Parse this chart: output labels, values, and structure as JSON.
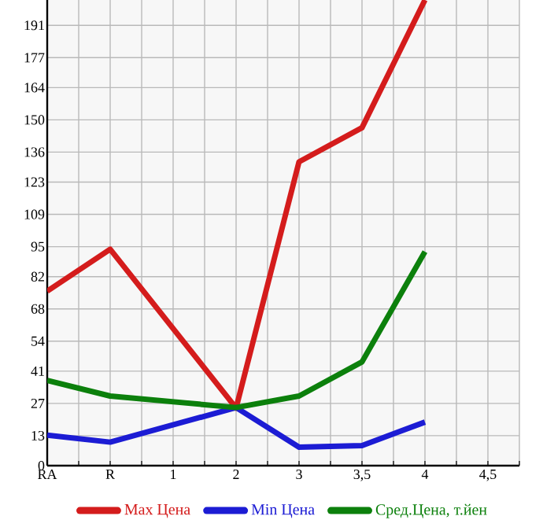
{
  "chart_data": {
    "type": "line",
    "categories": [
      "RA",
      "R",
      "1",
      "2",
      "3",
      "3,5",
      "4",
      "4,5"
    ],
    "series": [
      {
        "name": "Max Цена",
        "color": "#d41c1c",
        "values": [
          75.7,
          93.9,
          null,
          25,
          131.8,
          146.6,
          202,
          null
        ]
      },
      {
        "name": "Min Цена",
        "color": "#1c1cd4",
        "values": [
          13.2,
          10.2,
          null,
          25.2,
          8,
          8.7,
          18.9,
          null
        ]
      },
      {
        "name": "Сред.Цена, т.йен",
        "color": "#0c800c",
        "values": [
          37,
          30.2,
          null,
          25.2,
          30.2,
          45,
          92.8,
          null
        ]
      }
    ],
    "ylim": [
      0,
      202
    ],
    "yticks": [
      0,
      13,
      27,
      41,
      54,
      68,
      82,
      95,
      109,
      123,
      136,
      150,
      164,
      177,
      191
    ],
    "grid": true,
    "legend": "bottom",
    "marker": "none",
    "line_style": "solid"
  }
}
